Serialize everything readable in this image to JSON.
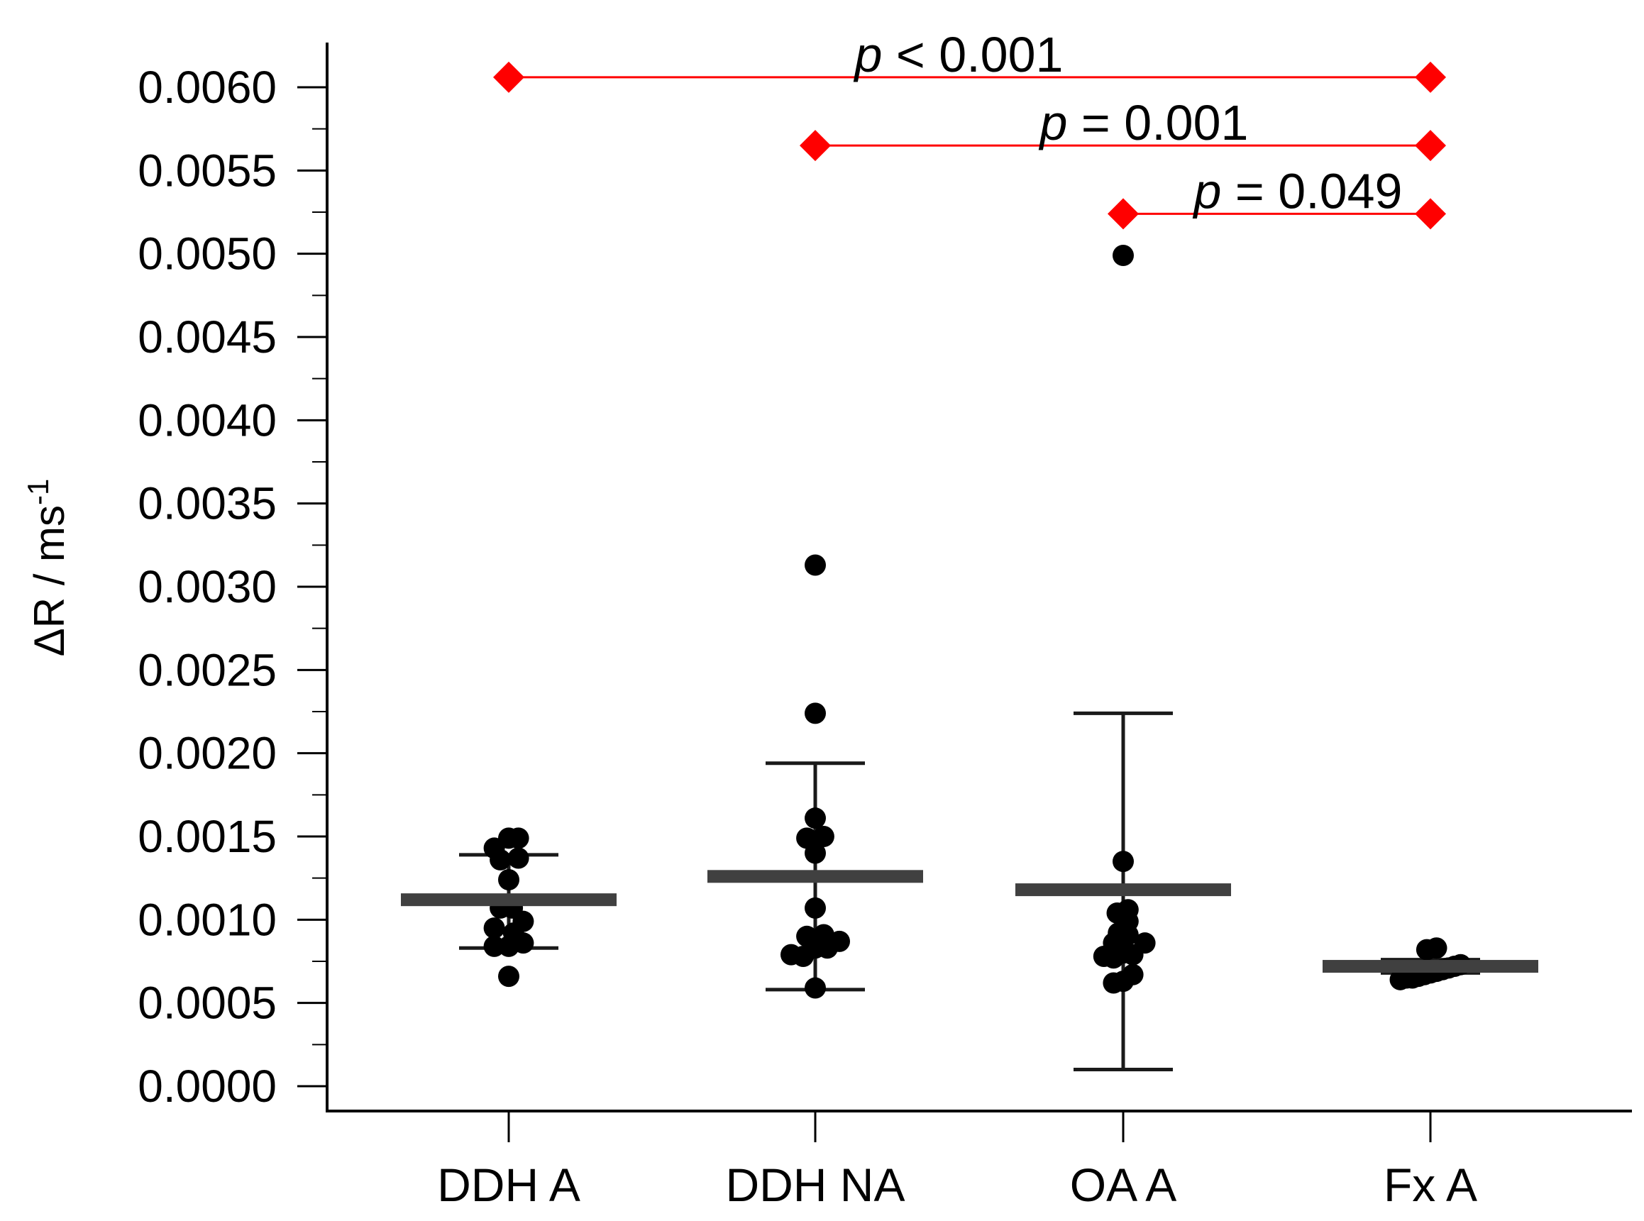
{
  "chart_data": {
    "type": "scatter",
    "title": "",
    "xlabel": "",
    "ylabel": "ΔR / ms",
    "ylabel_superscript": "-1",
    "ylim": [
      -0.00015,
      0.0063
    ],
    "yticks": [
      "0.0000",
      "0.0005",
      "0.0010",
      "0.0015",
      "0.0020",
      "0.0025",
      "0.0030",
      "0.0035",
      "0.0040",
      "0.0045",
      "0.0050",
      "0.0055",
      "0.0060"
    ],
    "categories": [
      "DDH A",
      "DDH NA",
      "OA A",
      "Fx A"
    ],
    "groups": [
      {
        "name": "DDH A",
        "mean": 0.00112,
        "error_low": 0.00083,
        "error_high": 0.00139,
        "points": [
          [
            -0.12,
            0.00143
          ],
          [
            0.0,
            0.00149
          ],
          [
            0.08,
            0.00149
          ],
          [
            -0.07,
            0.00136
          ],
          [
            0.08,
            0.00137
          ],
          [
            0.0,
            0.00124
          ],
          [
            -0.07,
            0.00107
          ],
          [
            0.03,
            0.00107
          ],
          [
            -0.12,
            0.00095
          ],
          [
            0.12,
            0.00099
          ],
          [
            0.04,
            0.00092
          ],
          [
            -0.12,
            0.00084
          ],
          [
            0.12,
            0.00086
          ],
          [
            0.0,
            0.00084
          ],
          [
            0.0,
            0.00066
          ]
        ]
      },
      {
        "name": "DDH NA",
        "mean": 0.00126,
        "error_low": 0.00058,
        "error_high": 0.00194,
        "points": [
          [
            0.0,
            0.00313
          ],
          [
            0.0,
            0.00224
          ],
          [
            0.0,
            0.00161
          ],
          [
            -0.07,
            0.00149
          ],
          [
            0.07,
            0.0015
          ],
          [
            0.0,
            0.0014
          ],
          [
            0.0,
            0.00107
          ],
          [
            -0.07,
            0.0009
          ],
          [
            0.07,
            0.00091
          ],
          [
            0.0,
            0.00083
          ],
          [
            -0.2,
            0.00079
          ],
          [
            -0.1,
            0.00078
          ],
          [
            0.1,
            0.00083
          ],
          [
            0.2,
            0.00087
          ],
          [
            0.0,
            0.00059
          ]
        ]
      },
      {
        "name": "OA A",
        "mean": 0.00118,
        "error_low": 0.0001,
        "error_high": 0.00224,
        "points": [
          [
            0.0,
            0.00499
          ],
          [
            0.0,
            0.00135
          ],
          [
            -0.05,
            0.00104
          ],
          [
            0.04,
            0.00106
          ],
          [
            0.04,
            0.00099
          ],
          [
            -0.04,
            0.00092
          ],
          [
            0.04,
            0.00091
          ],
          [
            -0.08,
            0.00086
          ],
          [
            0.18,
            0.00086
          ],
          [
            -0.16,
            0.00078
          ],
          [
            -0.08,
            0.00077
          ],
          [
            0.0,
            0.0008
          ],
          [
            0.08,
            0.00079
          ],
          [
            -0.08,
            0.00062
          ],
          [
            0.0,
            0.00063
          ],
          [
            0.08,
            0.00067
          ]
        ]
      },
      {
        "name": "Fx A",
        "mean": 0.00072,
        "error_low": 0.00068,
        "error_high": 0.00076,
        "points": [
          [
            -0.25,
            0.00064
          ],
          [
            -0.2,
            0.00065
          ],
          [
            -0.15,
            0.00065
          ],
          [
            -0.1,
            0.00066
          ],
          [
            -0.05,
            0.00067
          ],
          [
            0.0,
            0.00068
          ],
          [
            0.05,
            0.00069
          ],
          [
            0.1,
            0.0007
          ],
          [
            0.15,
            0.00071
          ],
          [
            0.2,
            0.00072
          ],
          [
            0.25,
            0.00073
          ],
          [
            -0.03,
            0.00082
          ],
          [
            0.05,
            0.00083
          ]
        ]
      }
    ],
    "significance": [
      {
        "from": "DDH A",
        "to": "Fx A",
        "y": 0.00606,
        "label": "< 0.001"
      },
      {
        "from": "DDH NA",
        "to": "Fx A",
        "y": 0.00565,
        "label": "= 0.001"
      },
      {
        "from": "OA A",
        "to": "Fx A",
        "y": 0.00524,
        "label": "= 0.049"
      }
    ],
    "p_symbol": "p",
    "colors": {
      "points": "#000000",
      "mean_bar": "#404040",
      "error_bar": "#1a1a1a",
      "significance": "#ff0000",
      "axis": "#000000"
    }
  }
}
